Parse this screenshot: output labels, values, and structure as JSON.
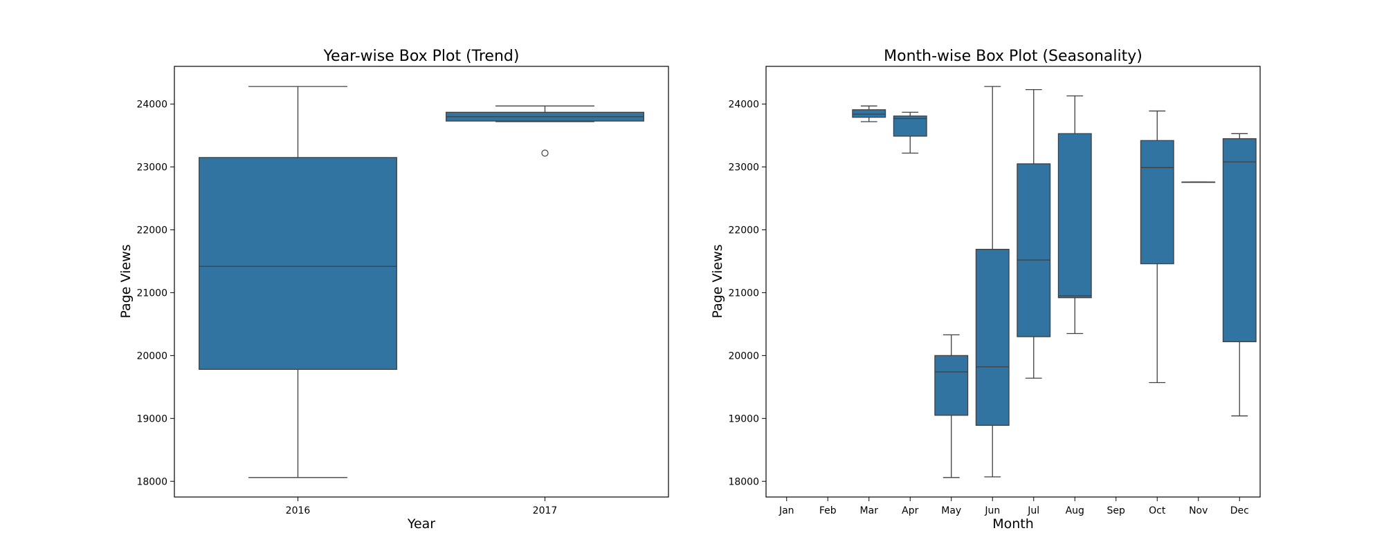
{
  "chart_data": [
    {
      "type": "box",
      "title": "Year-wise Box Plot (Trend)",
      "xlabel": "Year",
      "ylabel": "Page Views",
      "ylim": [
        17750,
        24600
      ],
      "yticks": [
        18000,
        19000,
        20000,
        21000,
        22000,
        23000,
        24000
      ],
      "color": "#3274a1",
      "categories": [
        "2016",
        "2017"
      ],
      "boxes": [
        {
          "category": "2016",
          "whisker_low": 18060,
          "q1": 19780,
          "median": 21420,
          "q3": 23150,
          "whisker_high": 24280,
          "outliers": []
        },
        {
          "category": "2017",
          "whisker_low": 23720,
          "q1": 23730,
          "median": 23800,
          "q3": 23870,
          "whisker_high": 23970,
          "outliers": [
            23220
          ]
        }
      ]
    },
    {
      "type": "box",
      "title": "Month-wise Box Plot (Seasonality)",
      "xlabel": "Month",
      "ylabel": "Page Views",
      "ylim": [
        17750,
        24600
      ],
      "yticks": [
        18000,
        19000,
        20000,
        21000,
        22000,
        23000,
        24000
      ],
      "color": "#3274a1",
      "categories": [
        "Jan",
        "Feb",
        "Mar",
        "Apr",
        "May",
        "Jun",
        "Jul",
        "Aug",
        "Sep",
        "Oct",
        "Nov",
        "Dec"
      ],
      "boxes": [
        null,
        null,
        {
          "category": "Mar",
          "whisker_low": 23720,
          "q1": 23790,
          "median": 23840,
          "q3": 23910,
          "whisker_high": 23970,
          "outliers": []
        },
        {
          "category": "Apr",
          "whisker_low": 23220,
          "q1": 23490,
          "median": 23770,
          "q3": 23810,
          "whisker_high": 23870,
          "outliers": []
        },
        {
          "category": "May",
          "whisker_low": 18060,
          "q1": 19050,
          "median": 19740,
          "q3": 20000,
          "whisker_high": 20330,
          "outliers": []
        },
        {
          "category": "Jun",
          "whisker_low": 18070,
          "q1": 18890,
          "median": 19820,
          "q3": 21690,
          "whisker_high": 24280,
          "outliers": []
        },
        {
          "category": "Jul",
          "whisker_low": 19640,
          "q1": 20300,
          "median": 21520,
          "q3": 23050,
          "whisker_high": 24230,
          "outliers": []
        },
        {
          "category": "Aug",
          "whisker_low": 20350,
          "q1": 20920,
          "median": 20950,
          "q3": 23530,
          "whisker_high": 24130,
          "outliers": []
        },
        null,
        {
          "category": "Oct",
          "whisker_low": 19570,
          "q1": 21460,
          "median": 22990,
          "q3": 23420,
          "whisker_high": 23890,
          "outliers": []
        },
        {
          "category": "Nov",
          "whisker_low": 22760,
          "q1": 22760,
          "median": 22760,
          "q3": 22760,
          "whisker_high": 22760,
          "outliers": []
        },
        {
          "category": "Dec",
          "whisker_low": 19040,
          "q1": 20220,
          "median": 23080,
          "q3": 23450,
          "whisker_high": 23530,
          "outliers": []
        }
      ]
    }
  ]
}
